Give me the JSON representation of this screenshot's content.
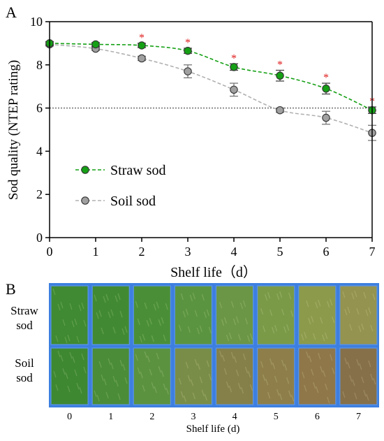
{
  "chart_data": {
    "type": "line",
    "panel_label": "A",
    "xlabel": "Shelf life（d）",
    "ylabel": "Sod quality (NTEP rating)",
    "xlim": [
      0,
      7
    ],
    "ylim": [
      0,
      10
    ],
    "xticks": [
      "0",
      "1",
      "2",
      "3",
      "4",
      "5",
      "6",
      "7"
    ],
    "yticks": [
      "0",
      "2",
      "4",
      "6",
      "8",
      "10"
    ],
    "x": [
      0,
      1,
      2,
      3,
      4,
      5,
      6,
      7
    ],
    "reference_line": 6,
    "legend_position": "lower-left",
    "series": [
      {
        "name": "Straw sod",
        "values": [
          9.0,
          8.95,
          8.9,
          8.65,
          7.9,
          7.5,
          6.9,
          5.9
        ],
        "errors": [
          0.08,
          0.08,
          0.1,
          0.12,
          0.15,
          0.25,
          0.25,
          0.15
        ],
        "color": "#15a015",
        "trend_color": "#15a015",
        "significance": [
          false,
          false,
          true,
          true,
          true,
          true,
          true,
          true
        ]
      },
      {
        "name": "Soil sod",
        "values": [
          8.95,
          8.75,
          8.3,
          7.7,
          6.85,
          5.9,
          5.55,
          4.85
        ],
        "errors": [
          0.08,
          0.08,
          0.1,
          0.3,
          0.3,
          0.1,
          0.3,
          0.35
        ],
        "color": "#a0a0a0",
        "trend_color": "#b0b0b0"
      }
    ],
    "significance_marker": "*",
    "significance_color": "#e02020"
  },
  "photo_panel": {
    "panel_label": "B",
    "row_labels": [
      "Straw\nsod",
      "Soil\nsod"
    ],
    "columns": [
      "0",
      "1",
      "2",
      "3",
      "4",
      "5",
      "6",
      "7"
    ],
    "xlabel": "Shelf life (d)",
    "tray_color": "#3d7fe0",
    "straw_colors": [
      "#3f8a32",
      "#418a33",
      "#4a8f38",
      "#5a9440",
      "#6b9645",
      "#7a9a48",
      "#8c9a4c",
      "#94934f"
    ],
    "soil_colors": [
      "#3e8832",
      "#4a8c38",
      "#5b9240",
      "#7a8d48",
      "#85804a",
      "#8e7f4a",
      "#8f774a",
      "#86704a"
    ]
  }
}
